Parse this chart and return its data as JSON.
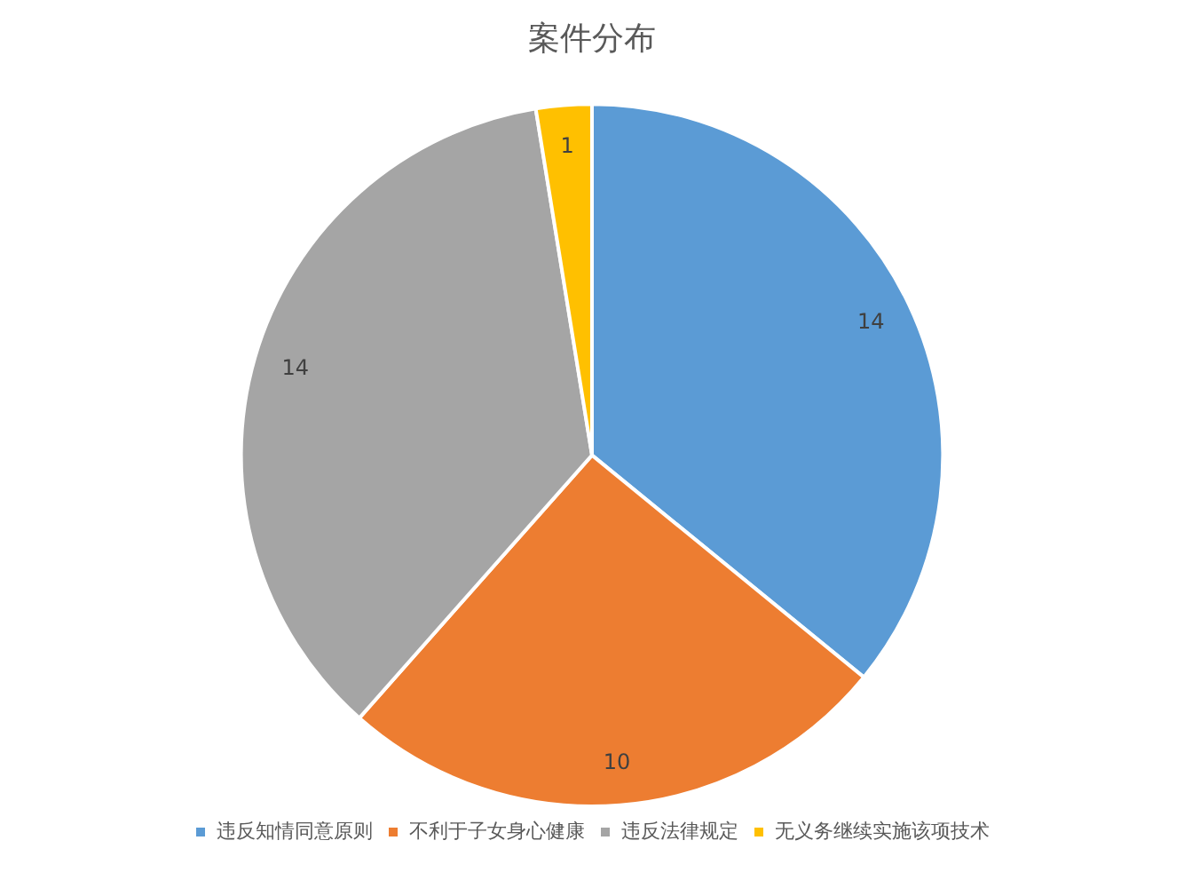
{
  "chart_data": {
    "type": "pie",
    "title": "案件分布",
    "categories": [
      "违反知情同意原则",
      "不利于子女身心健康",
      "违反法律规定",
      "无义务继续实施该项技术"
    ],
    "values": [
      14,
      10,
      14,
      1
    ],
    "colors": [
      "#5b9bd5",
      "#ed7d31",
      "#a5a5a5",
      "#ffc000"
    ],
    "data_labels": true,
    "legend": "bottom"
  }
}
